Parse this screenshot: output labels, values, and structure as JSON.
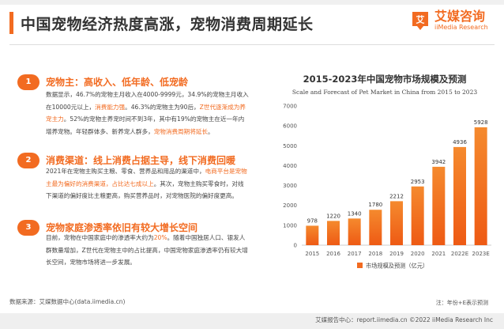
{
  "page": {
    "title": "中国宠物经济热度高涨，宠物消费周期延长"
  },
  "logo": {
    "name": "艾媒咨询",
    "sub": "iiMedia Research",
    "mark": "艾"
  },
  "points": [
    {
      "num": "1",
      "heading": "宠物主：高收入、低年龄、低宠龄",
      "segments": [
        {
          "t": "数据显示，46.7%的宠物主月收入在4000-9999元，34.9%的宠物主月收入在10000元以上，",
          "hl": false
        },
        {
          "t": "消费能力强",
          "hl": true
        },
        {
          "t": "。46.3%的宠物主为90后，",
          "hl": false
        },
        {
          "t": "Z世代逐渐成为养宠主力",
          "hl": true
        },
        {
          "t": "。52%的宠物主养宠时间不到3年，其中有19%的宠物主在近一年内增养宠物。年轻群体多、新养宠人群多，",
          "hl": false
        },
        {
          "t": "宠物消费周期将延长",
          "hl": true
        },
        {
          "t": "。",
          "hl": false
        }
      ]
    },
    {
      "num": "2",
      "heading": "消费渠道：线上消费占据主导，线下消费回暖",
      "segments": [
        {
          "t": "2021年在宠物主购买主粮、零食、营养品和用品的渠道中，",
          "hl": false
        },
        {
          "t": "电商平台是宠物主最为偏好的消费渠道，占比达七成以上",
          "hl": true
        },
        {
          "t": "。其次，宠物主购买零食时，对线下渠道的偏好度比主粮更高，购买营养品时，对宠物医院的偏好度更高。",
          "hl": false
        }
      ]
    },
    {
      "num": "3",
      "heading": "宠物家庭渗透率依旧有较大增长空间",
      "segments": [
        {
          "t": "目前，宠物在中国家庭中的渗透率大约为",
          "hl": false
        },
        {
          "t": "20%",
          "hl": true
        },
        {
          "t": "。随着中国独居人口、银发人群数量增加，Z世代在宠物主中的占比提高，中国宠物家庭渗透率仍有较大增长空间，宠物市场将进一步发展。",
          "hl": false
        }
      ]
    }
  ],
  "chart": {
    "title": "2015-2023年中国宠物市场规模及预测",
    "subtitle": "Scale and Forecast of Pet Market in China from 2015 to 2023",
    "legend": "市场规模及预测（亿元）"
  },
  "chart_data": {
    "type": "bar",
    "title": "2015-2023年中国宠物市场规模及预测",
    "subtitle": "Scale and Forecast of Pet Market in China from 2015 to 2023",
    "categories": [
      "2015",
      "2016",
      "2017",
      "2018",
      "2019",
      "2020",
      "2021",
      "2022E",
      "2023E"
    ],
    "series": [
      {
        "name": "市场规模及预测（亿元）",
        "values": [
          978,
          1220,
          1340,
          1780,
          2212,
          2953,
          3942,
          4936,
          5928
        ]
      }
    ],
    "yticks": [
      0,
      1000,
      2000,
      3000,
      4000,
      5000,
      6000,
      7000
    ],
    "ylim": [
      0,
      7000
    ],
    "grid": false,
    "legend_position": "bottom",
    "colors": {
      "bar_top": "#f58a2e",
      "bar_bottom": "#ee5a14",
      "accent": "#f26b21"
    }
  },
  "footer": {
    "source": "数据来源：艾媒数据中心(data.iimedia.cn)",
    "note": "注：年份+E表示预测",
    "bottom": "艾媒报告中心：report.iimedia.cn    ©2022  iiMedia Research  Inc"
  }
}
